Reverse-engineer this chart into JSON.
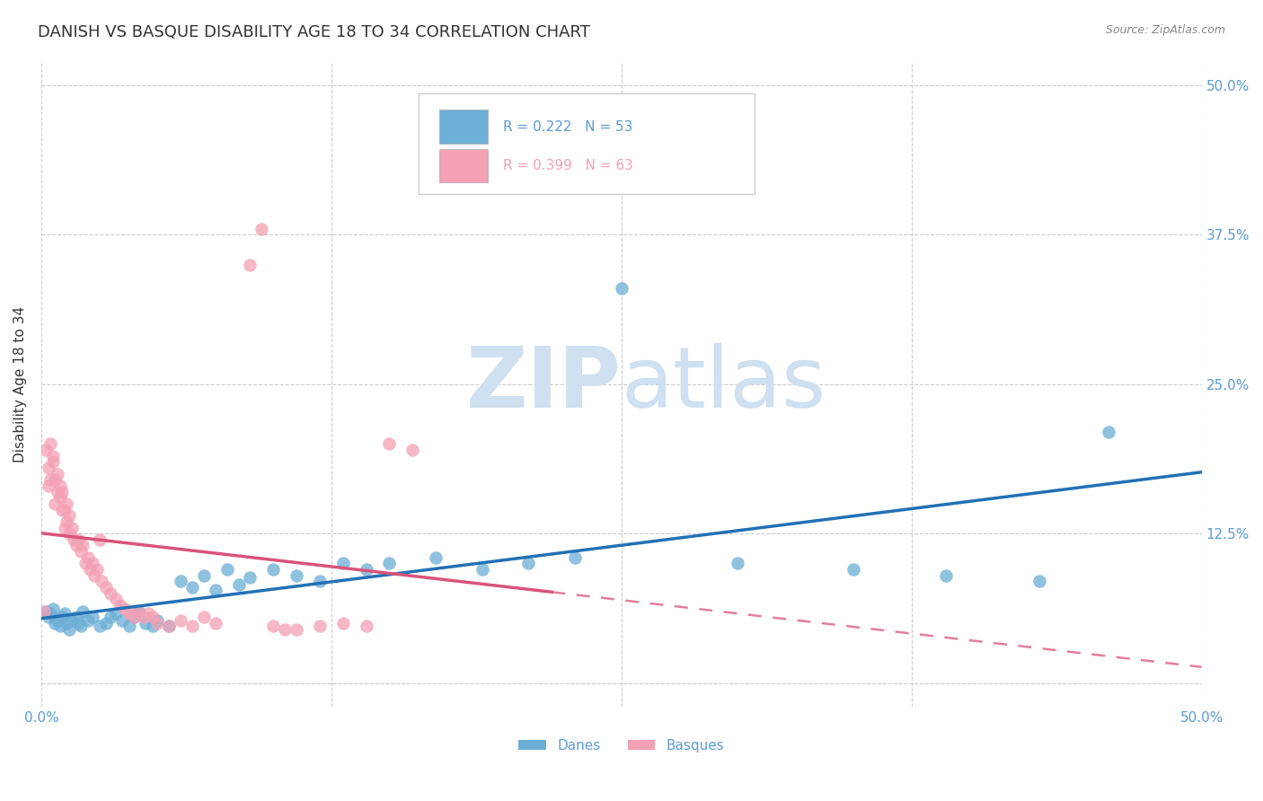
{
  "title": "DANISH VS BASQUE DISABILITY AGE 18 TO 34 CORRELATION CHART",
  "source": "Source: ZipAtlas.com",
  "ylabel": "Disability Age 18 to 34",
  "xmin": 0.0,
  "xmax": 0.5,
  "ymin": -0.02,
  "ymax": 0.52,
  "blue_R": 0.222,
  "blue_N": 53,
  "pink_R": 0.399,
  "pink_N": 63,
  "blue_color": "#6baed6",
  "pink_color": "#f4a0b5",
  "blue_line_color": "#2171b5",
  "pink_line_color": "#d9537a",
  "watermark_color": "#cfe0f0",
  "background_color": "#ffffff",
  "grid_color": "#cccccc",
  "tick_color": "#5b9bd5",
  "title_fontsize": 13,
  "axis_label_fontsize": 11,
  "tick_fontsize": 11,
  "blue_scatter_x": [
    0.002,
    0.003,
    0.004,
    0.005,
    0.006,
    0.007,
    0.008,
    0.009,
    0.01,
    0.011,
    0.012,
    0.013,
    0.015,
    0.016,
    0.017,
    0.018,
    0.02,
    0.022,
    0.025,
    0.028,
    0.03,
    0.032,
    0.035,
    0.038,
    0.04,
    0.042,
    0.045,
    0.048,
    0.05,
    0.055,
    0.06,
    0.065,
    0.07,
    0.075,
    0.08,
    0.085,
    0.09,
    0.1,
    0.11,
    0.12,
    0.13,
    0.14,
    0.15,
    0.17,
    0.19,
    0.21,
    0.23,
    0.25,
    0.3,
    0.35,
    0.39,
    0.43,
    0.46
  ],
  "blue_scatter_y": [
    0.06,
    0.055,
    0.058,
    0.062,
    0.05,
    0.052,
    0.048,
    0.055,
    0.058,
    0.05,
    0.045,
    0.052,
    0.055,
    0.05,
    0.048,
    0.06,
    0.052,
    0.055,
    0.048,
    0.05,
    0.055,
    0.058,
    0.052,
    0.048,
    0.055,
    0.06,
    0.05,
    0.048,
    0.052,
    0.048,
    0.085,
    0.08,
    0.09,
    0.078,
    0.095,
    0.082,
    0.088,
    0.095,
    0.09,
    0.085,
    0.1,
    0.095,
    0.1,
    0.105,
    0.095,
    0.1,
    0.105,
    0.33,
    0.1,
    0.095,
    0.09,
    0.085,
    0.21
  ],
  "pink_scatter_x": [
    0.001,
    0.002,
    0.003,
    0.003,
    0.004,
    0.004,
    0.005,
    0.005,
    0.006,
    0.006,
    0.007,
    0.007,
    0.008,
    0.008,
    0.009,
    0.009,
    0.01,
    0.01,
    0.011,
    0.011,
    0.012,
    0.012,
    0.013,
    0.014,
    0.015,
    0.016,
    0.017,
    0.018,
    0.019,
    0.02,
    0.021,
    0.022,
    0.023,
    0.024,
    0.025,
    0.026,
    0.028,
    0.03,
    0.032,
    0.034,
    0.036,
    0.038,
    0.04,
    0.042,
    0.044,
    0.046,
    0.048,
    0.05,
    0.055,
    0.06,
    0.065,
    0.07,
    0.075,
    0.09,
    0.095,
    0.1,
    0.105,
    0.11,
    0.12,
    0.13,
    0.14,
    0.15,
    0.16
  ],
  "pink_scatter_y": [
    0.06,
    0.195,
    0.18,
    0.165,
    0.2,
    0.17,
    0.185,
    0.19,
    0.15,
    0.17,
    0.16,
    0.175,
    0.155,
    0.165,
    0.145,
    0.16,
    0.13,
    0.145,
    0.135,
    0.15,
    0.125,
    0.14,
    0.13,
    0.12,
    0.115,
    0.12,
    0.11,
    0.115,
    0.1,
    0.105,
    0.095,
    0.1,
    0.09,
    0.095,
    0.12,
    0.085,
    0.08,
    0.075,
    0.07,
    0.065,
    0.062,
    0.058,
    0.055,
    0.06,
    0.055,
    0.058,
    0.055,
    0.05,
    0.048,
    0.052,
    0.048,
    0.055,
    0.05,
    0.35,
    0.38,
    0.048,
    0.045,
    0.045,
    0.048,
    0.05,
    0.048,
    0.2,
    0.195
  ]
}
